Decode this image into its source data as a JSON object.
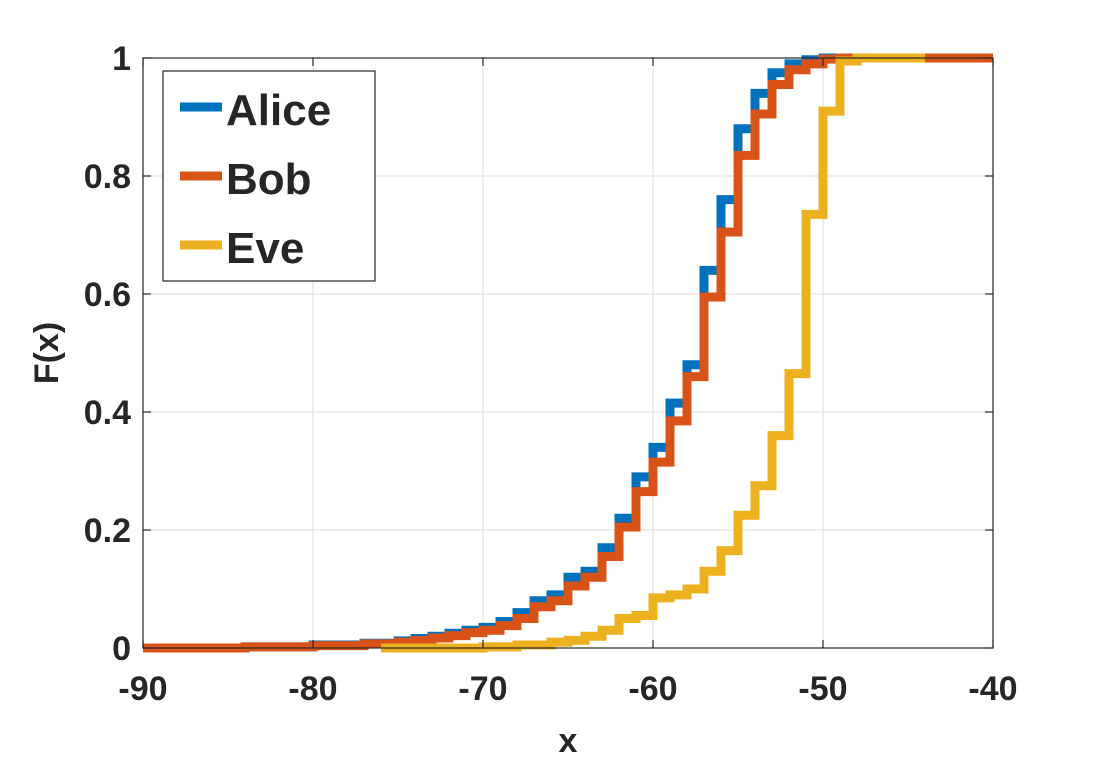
{
  "chart_data": {
    "type": "line",
    "step": true,
    "title": "",
    "xlabel": "x",
    "ylabel": "F(x)",
    "xlim": [
      -90,
      -40
    ],
    "ylim": [
      0,
      1
    ],
    "xticks": [
      -90,
      -80,
      -70,
      -60,
      -50,
      -40
    ],
    "xtick_labels": [
      "-90",
      "-80",
      "-70",
      "-60",
      "-50",
      "-40"
    ],
    "yticks": [
      0,
      0.2,
      0.4,
      0.6,
      0.8,
      1
    ],
    "ytick_labels": [
      "0",
      "0.2",
      "0.4",
      "0.6",
      "0.8",
      "1"
    ],
    "grid": true,
    "legend": {
      "position": "top-left",
      "entries": [
        "Alice",
        "Bob",
        "Eve"
      ]
    },
    "series": [
      {
        "name": "Alice",
        "color": "#0072BD",
        "points": [
          [
            -90,
            0
          ],
          [
            -84,
            0.002
          ],
          [
            -80,
            0.005
          ],
          [
            -77,
            0.008
          ],
          [
            -75,
            0.012
          ],
          [
            -74,
            0.016
          ],
          [
            -73,
            0.02
          ],
          [
            -72,
            0.025
          ],
          [
            -71,
            0.03
          ],
          [
            -70,
            0.035
          ],
          [
            -69,
            0.045
          ],
          [
            -68,
            0.06
          ],
          [
            -67,
            0.08
          ],
          [
            -66,
            0.09
          ],
          [
            -65,
            0.12
          ],
          [
            -64,
            0.13
          ],
          [
            -63,
            0.17
          ],
          [
            -62,
            0.22
          ],
          [
            -61,
            0.29
          ],
          [
            -60,
            0.34
          ],
          [
            -59,
            0.415
          ],
          [
            -58,
            0.48
          ],
          [
            -57,
            0.64
          ],
          [
            -56,
            0.76
          ],
          [
            -55,
            0.88
          ],
          [
            -54,
            0.94
          ],
          [
            -53,
            0.975
          ],
          [
            -52,
            0.99
          ],
          [
            -51,
            0.997
          ],
          [
            -50,
            1
          ],
          [
            -40,
            1
          ]
        ]
      },
      {
        "name": "Bob",
        "color": "#D95319",
        "points": [
          [
            -90,
            0
          ],
          [
            -84,
            0.002
          ],
          [
            -80,
            0.004
          ],
          [
            -77,
            0.007
          ],
          [
            -75,
            0.01
          ],
          [
            -74,
            0.013
          ],
          [
            -73,
            0.017
          ],
          [
            -72,
            0.021
          ],
          [
            -71,
            0.026
          ],
          [
            -70,
            0.03
          ],
          [
            -69,
            0.038
          ],
          [
            -68,
            0.05
          ],
          [
            -67,
            0.07
          ],
          [
            -66,
            0.08
          ],
          [
            -65,
            0.105
          ],
          [
            -64,
            0.12
          ],
          [
            -63,
            0.155
          ],
          [
            -62,
            0.205
          ],
          [
            -61,
            0.265
          ],
          [
            -60,
            0.315
          ],
          [
            -59,
            0.385
          ],
          [
            -58,
            0.46
          ],
          [
            -57,
            0.595
          ],
          [
            -56,
            0.705
          ],
          [
            -55,
            0.835
          ],
          [
            -54,
            0.905
          ],
          [
            -53,
            0.955
          ],
          [
            -52,
            0.98
          ],
          [
            -51,
            0.99
          ],
          [
            -50,
            0.998
          ],
          [
            -49,
            1
          ],
          [
            -40,
            1
          ]
        ]
      },
      {
        "name": "Eve",
        "color": "#EDB120",
        "points": [
          [
            -76,
            0
          ],
          [
            -70,
            0.002
          ],
          [
            -68,
            0.005
          ],
          [
            -66,
            0.01
          ],
          [
            -65,
            0.013
          ],
          [
            -64,
            0.02
          ],
          [
            -63,
            0.03
          ],
          [
            -62,
            0.05
          ],
          [
            -61,
            0.055
          ],
          [
            -60,
            0.085
          ],
          [
            -59,
            0.09
          ],
          [
            -58,
            0.1
          ],
          [
            -57,
            0.13
          ],
          [
            -56,
            0.165
          ],
          [
            -55,
            0.225
          ],
          [
            -54,
            0.275
          ],
          [
            -53,
            0.36
          ],
          [
            -52,
            0.465
          ],
          [
            -51,
            0.735
          ],
          [
            -50,
            0.91
          ],
          [
            -49,
            0.995
          ],
          [
            -48,
            1
          ],
          [
            -44,
            1
          ]
        ]
      }
    ]
  }
}
